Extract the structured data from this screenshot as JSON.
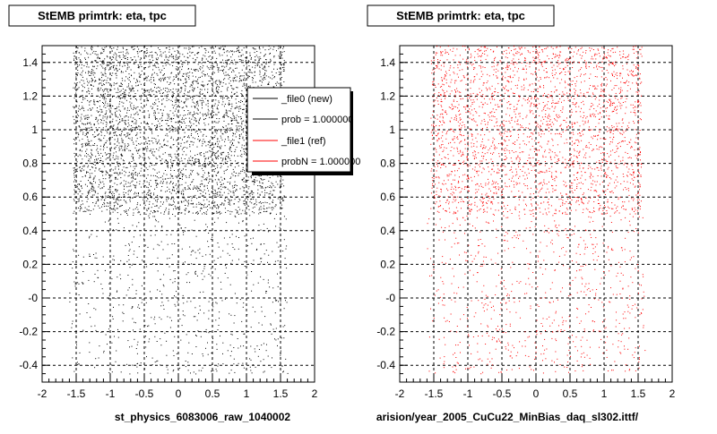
{
  "chart_data": [
    {
      "type": "scatter",
      "title": "StEMB primtrk: eta, tpc",
      "xlabel": "st_physics_6083006_raw_1040002",
      "ylabel": "",
      "xlim": [
        -2,
        2
      ],
      "ylim": [
        -0.5,
        1.5
      ],
      "x_ticks": [
        "-2",
        "-1.5",
        "-1",
        "-0.5",
        "0",
        "0.5",
        "1",
        "1.5",
        "2"
      ],
      "y_ticks": [
        "-0.4",
        "-0.2",
        "-0",
        "0.2",
        "0.4",
        "0.6",
        "0.8",
        "1",
        "1.2",
        "1.4"
      ],
      "grid": true,
      "series": [
        {
          "color": "#000000",
          "density": [
            {
              "x": [
                -1.6,
                1.6
              ],
              "y": [
                -0.45,
                0.5
              ],
              "n": 650
            },
            {
              "x": [
                -1.55,
                1.55
              ],
              "y": [
                0.5,
                1.5
              ],
              "n": 4200
            }
          ]
        }
      ],
      "legend": {
        "placement": "top-right",
        "entries": [
          {
            "label": "_file0 (new)",
            "color": "#000000"
          },
          {
            "label": "prob = 1.000000",
            "color": "#000000"
          },
          {
            "label": "_file1 (ref)",
            "color": "#ff0000"
          },
          {
            "label": "probN = 1.000000",
            "color": "#ff0000"
          }
        ]
      }
    },
    {
      "type": "scatter",
      "title": "StEMB primtrk: eta, tpc",
      "xlabel": "arision/year_2005_CuCu22_MinBias_daq_sl302.ittf/",
      "ylabel": "",
      "xlim": [
        -2,
        2
      ],
      "ylim": [
        -0.5,
        1.5
      ],
      "x_ticks": [
        "-2",
        "-1.5",
        "-1",
        "-0.5",
        "0",
        "0.5",
        "1",
        "1.5",
        "2"
      ],
      "y_ticks": [
        "-0.4",
        "-0.2",
        "-0",
        "0.2",
        "0.4",
        "0.6",
        "0.8",
        "1",
        "1.2",
        "1.4"
      ],
      "grid": true,
      "series": [
        {
          "color": "#ff0000",
          "density": [
            {
              "x": [
                -1.6,
                1.6
              ],
              "y": [
                -0.45,
                0.5
              ],
              "n": 700
            },
            {
              "x": [
                -1.55,
                1.55
              ],
              "y": [
                0.5,
                1.5
              ],
              "n": 2600
            }
          ]
        }
      ]
    }
  ]
}
